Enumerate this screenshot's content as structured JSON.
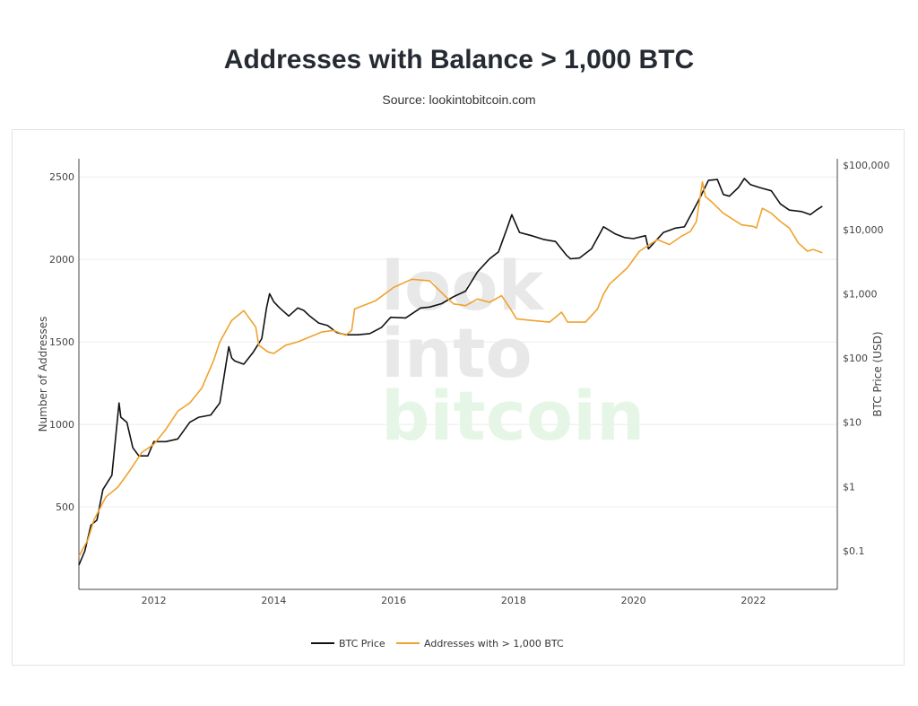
{
  "header": {
    "title": "Addresses with Balance > 1,000 BTC",
    "subtitle": "Source: lookintobitcoin.com"
  },
  "watermark": [
    "look",
    "into",
    "bitcoin"
  ],
  "colors": {
    "btc_price": "#111111",
    "addresses": "#f0a22e",
    "grid": "#ececec",
    "axis": "#444444"
  },
  "chart_data": {
    "type": "line",
    "title": "Addresses with Balance > 1,000 BTC",
    "xlabel": "",
    "ylabel": "Number of Addresses",
    "y2label": "BTC Price (USD)",
    "x_ticks": [
      "2012",
      "2014",
      "2016",
      "2018",
      "2020",
      "2022"
    ],
    "y_ticks": [
      "500",
      "1000",
      "1500",
      "2000",
      "2500"
    ],
    "y2_ticks": [
      "$0.1",
      "$1",
      "$10",
      "$100",
      "$1,000",
      "$10,000",
      "$100,000"
    ],
    "xlim": [
      2010.75,
      2023.4
    ],
    "ylim": [
      0,
      2610
    ],
    "y2lim_log10": [
      -1.6,
      5.1
    ],
    "y2_scale": "log",
    "grid": "horizontal",
    "legend_position": "bottom-center",
    "series": [
      {
        "name": "BTC Price",
        "axis": "right",
        "x": [
          2010.75,
          2010.85,
          2010.95,
          2011.05,
          2011.15,
          2011.3,
          2011.42,
          2011.45,
          2011.55,
          2011.65,
          2011.75,
          2011.9,
          2012.0,
          2012.2,
          2012.4,
          2012.6,
          2012.75,
          2012.95,
          2013.1,
          2013.25,
          2013.3,
          2013.35,
          2013.5,
          2013.65,
          2013.8,
          2013.88,
          2013.93,
          2014.0,
          2014.1,
          2014.25,
          2014.4,
          2014.5,
          2014.6,
          2014.75,
          2014.9,
          2015.05,
          2015.2,
          2015.4,
          2015.6,
          2015.8,
          2015.95,
          2016.2,
          2016.45,
          2016.6,
          2016.8,
          2017.0,
          2017.2,
          2017.4,
          2017.6,
          2017.75,
          2017.9,
          2017.97,
          2018.1,
          2018.3,
          2018.5,
          2018.7,
          2018.88,
          2018.95,
          2019.1,
          2019.3,
          2019.45,
          2019.5,
          2019.7,
          2019.85,
          2020.0,
          2020.2,
          2020.25,
          2020.5,
          2020.7,
          2020.85,
          2021.0,
          2021.1,
          2021.25,
          2021.4,
          2021.5,
          2021.6,
          2021.75,
          2021.85,
          2021.95,
          2022.1,
          2022.3,
          2022.45,
          2022.6,
          2022.8,
          2022.95,
          2023.05,
          2023.15
        ],
        "y": [
          0.06,
          0.1,
          0.25,
          0.3,
          0.9,
          1.5,
          20,
          12,
          10,
          4,
          3,
          3,
          5,
          5,
          5.5,
          10,
          12,
          13,
          20,
          150,
          100,
          90,
          80,
          120,
          200,
          600,
          1000,
          750,
          600,
          450,
          600,
          550,
          450,
          350,
          320,
          250,
          230,
          230,
          240,
          300,
          430,
          420,
          600,
          620,
          700,
          900,
          1100,
          2200,
          3500,
          4500,
          11000,
          17000,
          9000,
          8000,
          7000,
          6500,
          4000,
          3500,
          3600,
          5000,
          9000,
          11000,
          8500,
          7500,
          7200,
          8000,
          5000,
          9000,
          10500,
          11000,
          20000,
          30000,
          58000,
          60000,
          35000,
          33000,
          45000,
          62000,
          50000,
          45000,
          40000,
          25000,
          20000,
          19000,
          17000,
          20000,
          23000
        ]
      },
      {
        "name": "Addresses with > 1,000 BTC",
        "axis": "left",
        "x": [
          2010.75,
          2010.9,
          2011.0,
          2011.2,
          2011.4,
          2011.6,
          2011.8,
          2012.0,
          2012.2,
          2012.4,
          2012.6,
          2012.8,
          2013.0,
          2013.1,
          2013.3,
          2013.5,
          2013.7,
          2013.75,
          2013.9,
          2014.0,
          2014.2,
          2014.4,
          2014.6,
          2014.8,
          2015.0,
          2015.2,
          2015.3,
          2015.35,
          2015.7,
          2016.0,
          2016.3,
          2016.6,
          2016.85,
          2017.0,
          2017.2,
          2017.4,
          2017.6,
          2017.8,
          2017.95,
          2018.05,
          2018.3,
          2018.6,
          2018.8,
          2018.9,
          2019.1,
          2019.2,
          2019.4,
          2019.5,
          2019.6,
          2019.9,
          2020.1,
          2020.4,
          2020.6,
          2020.8,
          2020.95,
          2021.05,
          2021.15,
          2021.2,
          2021.3,
          2021.5,
          2021.8,
          2022.0,
          2022.05,
          2022.15,
          2022.3,
          2022.45,
          2022.6,
          2022.75,
          2022.9,
          2023.0,
          2023.15
        ],
        "y": [
          200,
          300,
          420,
          560,
          620,
          720,
          830,
          880,
          970,
          1080,
          1130,
          1220,
          1390,
          1500,
          1630,
          1690,
          1590,
          1480,
          1440,
          1430,
          1480,
          1500,
          1530,
          1560,
          1570,
          1540,
          1570,
          1700,
          1750,
          1830,
          1880,
          1870,
          1780,
          1730,
          1720,
          1760,
          1740,
          1780,
          1700,
          1640,
          1630,
          1620,
          1680,
          1620,
          1620,
          1620,
          1700,
          1790,
          1850,
          1950,
          2050,
          2120,
          2090,
          2140,
          2170,
          2230,
          2470,
          2380,
          2350,
          2280,
          2210,
          2200,
          2190,
          2310,
          2280,
          2230,
          2190,
          2100,
          2050,
          2060,
          2040
        ]
      }
    ]
  }
}
